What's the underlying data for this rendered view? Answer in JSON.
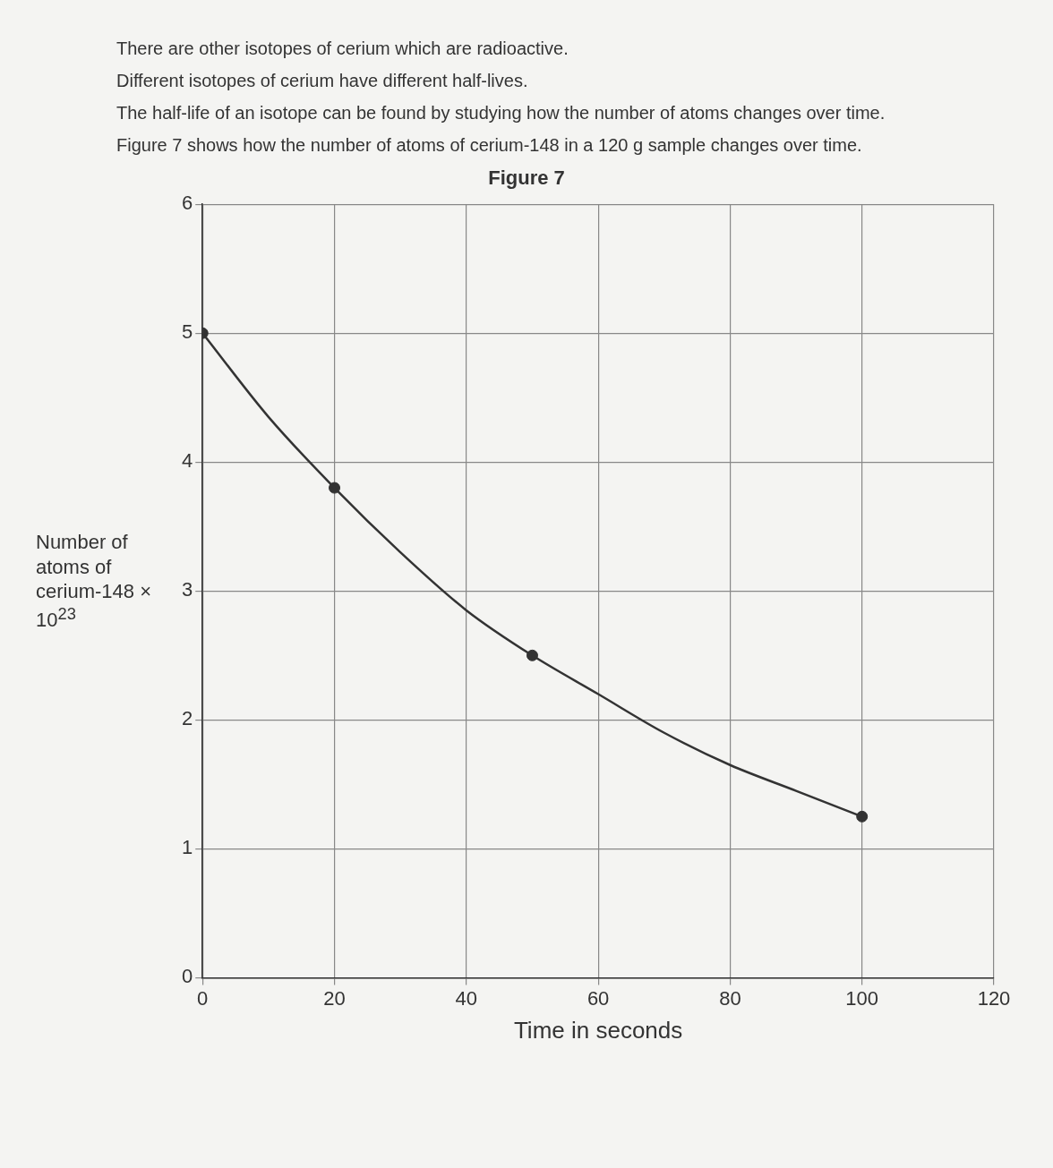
{
  "chart_data": {
    "type": "line",
    "title": "Figure 7",
    "annotations": [
      "There are other isotopes of cerium which are radioactive.",
      "Different isotopes of cerium have different half-lives.",
      "The half-life of an isotope can be found by studying how the number of atoms changes over time.",
      "Figure 7 shows how the number of atoms of cerium-148 in a 120 g sample changes over time."
    ],
    "xlabel": "Time in seconds",
    "ylabel": "Number of atoms of cerium-148 × 10$^{23}$",
    "xlim": [
      0,
      120
    ],
    "xticks": [
      0,
      20,
      40,
      60,
      80,
      100,
      120
    ],
    "ylim": [
      0,
      6
    ],
    "yticks": [
      0,
      1,
      2,
      3,
      4,
      5,
      6
    ],
    "grid": true,
    "line_style": "solid",
    "series": [
      {
        "type": "line",
        "marker": "none",
        "color": "#333333",
        "x": [
          0,
          10,
          20,
          30,
          40,
          50,
          60,
          70,
          80,
          90,
          100
        ],
        "values": [
          5,
          4.35,
          3.8,
          3.3,
          2.85,
          2.5,
          2.2,
          1.9,
          1.65,
          1.45,
          1.25
        ]
      },
      {
        "type": "scatter",
        "marker": "circle",
        "color": "#333333",
        "x": [
          0,
          20,
          50,
          100
        ],
        "values": [
          5,
          3.8,
          2.5,
          1.25
        ]
      }
    ]
  }
}
